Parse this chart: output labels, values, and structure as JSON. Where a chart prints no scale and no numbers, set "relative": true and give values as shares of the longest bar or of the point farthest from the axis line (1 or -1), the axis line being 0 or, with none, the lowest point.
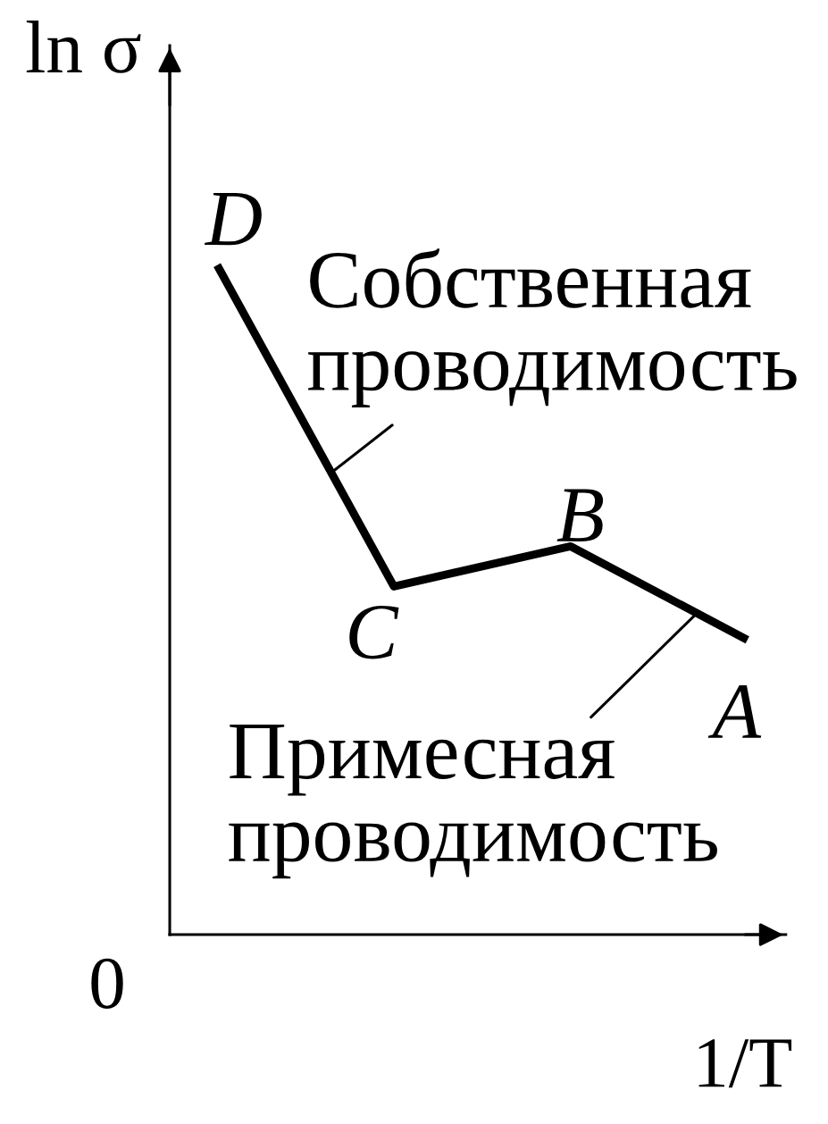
{
  "chart_data": {
    "type": "line",
    "relative": true,
    "xlabel": "1/T",
    "ylabel": "ln σ",
    "categories": [
      null,
      null,
      null,
      null
    ],
    "values": [
      1,
      0.52,
      0.58,
      0.44
    ],
    "color": "#000000",
    "annotations": [
      "0",
      "D",
      "C",
      "B",
      "A",
      "Собственная\nпроводимость",
      "Примесная\nпроводимость"
    ]
  }
}
